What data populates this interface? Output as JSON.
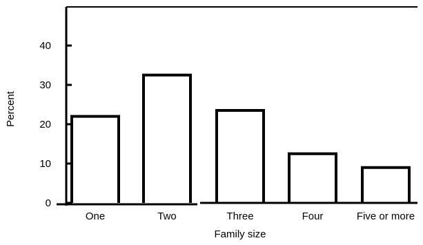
{
  "chart_data": {
    "type": "bar",
    "categories": [
      "One",
      "Two",
      "Three",
      "Four",
      "Five or more"
    ],
    "values": [
      22,
      32.5,
      23.5,
      12.5,
      9
    ],
    "xlabel": "Family size",
    "ylabel": "Percent",
    "ylim": [
      0,
      48
    ],
    "yticks": [
      0,
      10,
      20,
      30,
      40
    ],
    "grid": false,
    "bar_style": "outline",
    "colors": {
      "bar_stroke": "#000000",
      "axis": "#000000",
      "background": "#ffffff"
    }
  }
}
